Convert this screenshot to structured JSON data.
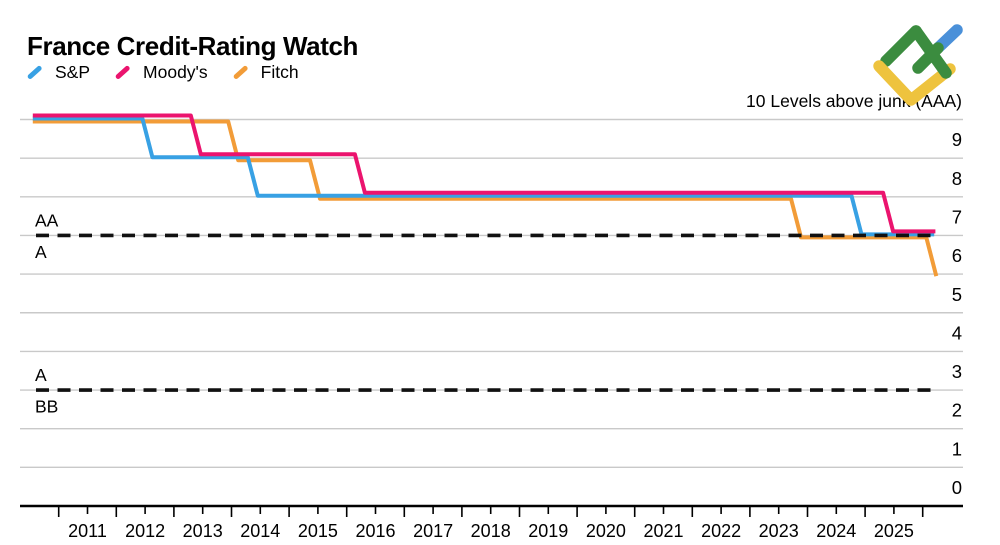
{
  "title": "France Credit-Rating Watch",
  "legend": {
    "items": [
      {
        "label": "S&P",
        "color": "#38A1E4"
      },
      {
        "label": "Moody's",
        "color": "#EB146E"
      },
      {
        "label": "Fitch",
        "color": "#F29C38"
      }
    ]
  },
  "annotation": "10 Levels above junk (AAA)",
  "y_axis": {
    "labels": [
      "9",
      "8",
      "7",
      "6",
      "5",
      "4",
      "3",
      "2",
      "1",
      "0"
    ],
    "top_level": 10,
    "ylim": [
      0,
      10
    ]
  },
  "x_axis": {
    "years": [
      "2011",
      "2012",
      "2013",
      "2014",
      "2015",
      "2016",
      "2017",
      "2018",
      "2019",
      "2020",
      "2021",
      "2022",
      "2023",
      "2024",
      "2025"
    ]
  },
  "thresholds": [
    {
      "label_above": "AA",
      "label_below": "A",
      "level": 7
    },
    {
      "label_above": "A",
      "label_below": "BB",
      "level": 3
    }
  ],
  "chart_data": {
    "type": "line",
    "style": "step",
    "title": "France Credit-Rating Watch",
    "ylabel": "10 Levels above junk (AAA)",
    "ylim": [
      0,
      10
    ],
    "x_range": [
      2010.05,
      2025.75
    ],
    "grid": true,
    "legend_position": "top-left",
    "series": [
      {
        "name": "S&P",
        "color": "#38A1E4",
        "points": [
          [
            2010.05,
            10
          ],
          [
            2012.04,
            9
          ],
          [
            2013.87,
            8
          ],
          [
            2024.35,
            7
          ]
        ],
        "end": 2025.7
      },
      {
        "name": "Moody's",
        "color": "#EB146E",
        "points": [
          [
            2010.05,
            10
          ],
          [
            2012.88,
            9
          ],
          [
            2015.73,
            8
          ],
          [
            2024.9,
            7
          ]
        ],
        "end": 2025.72
      },
      {
        "name": "Fitch",
        "color": "#F29C38",
        "points": [
          [
            2010.05,
            10
          ],
          [
            2013.53,
            9
          ],
          [
            2014.95,
            8
          ],
          [
            2023.3,
            7
          ],
          [
            2025.65,
            6
          ]
        ],
        "end": 2025.7
      }
    ]
  },
  "logo": {
    "name": "litefinance-logo",
    "green": "#3B8C3F",
    "blue": "#4A90D9",
    "yellow": "#EEC33E"
  },
  "colors": {
    "grid": "#c9c9c9",
    "axis": "#000000",
    "dash": "#111111",
    "background": "#ffffff"
  }
}
